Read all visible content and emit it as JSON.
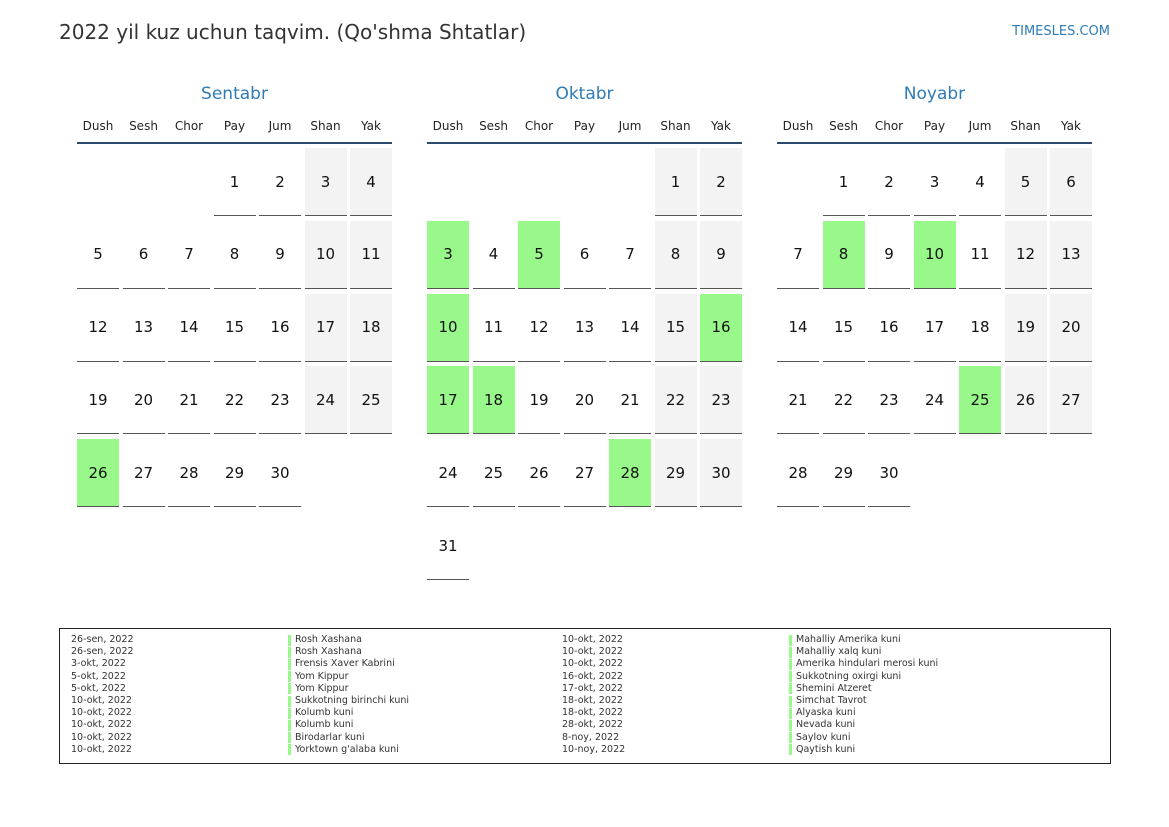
{
  "header": {
    "title": "2022 yil kuz uchun taqvim. (Qo'shma Shtatlar)",
    "site": "TIMESLES.COM"
  },
  "weekdays": [
    "Dush",
    "Sesh",
    "Chor",
    "Pay",
    "Jum",
    "Shan",
    "Yak"
  ],
  "weekend_columns": [
    5,
    6
  ],
  "months": [
    {
      "name": "Sentabr",
      "highlight": [
        26
      ],
      "weeks": [
        [
          null,
          null,
          null,
          1,
          2,
          3,
          4
        ],
        [
          5,
          6,
          7,
          8,
          9,
          10,
          11
        ],
        [
          12,
          13,
          14,
          15,
          16,
          17,
          18
        ],
        [
          19,
          20,
          21,
          22,
          23,
          24,
          25
        ],
        [
          26,
          27,
          28,
          29,
          30,
          null,
          null
        ]
      ]
    },
    {
      "name": "Oktabr",
      "highlight": [
        3,
        5,
        10,
        16,
        17,
        18,
        28
      ],
      "weeks": [
        [
          null,
          null,
          null,
          null,
          null,
          1,
          2
        ],
        [
          3,
          4,
          5,
          6,
          7,
          8,
          9
        ],
        [
          10,
          11,
          12,
          13,
          14,
          15,
          16
        ],
        [
          17,
          18,
          19,
          20,
          21,
          22,
          23
        ],
        [
          24,
          25,
          26,
          27,
          28,
          29,
          30
        ],
        [
          31,
          null,
          null,
          null,
          null,
          null,
          null
        ]
      ]
    },
    {
      "name": "Noyabr",
      "highlight": [
        8,
        10,
        25
      ],
      "weeks": [
        [
          null,
          1,
          2,
          3,
          4,
          5,
          6
        ],
        [
          7,
          8,
          9,
          10,
          11,
          12,
          13
        ],
        [
          14,
          15,
          16,
          17,
          18,
          19,
          20
        ],
        [
          21,
          22,
          23,
          24,
          25,
          26,
          27
        ],
        [
          28,
          29,
          30,
          null,
          null,
          null,
          null
        ]
      ]
    }
  ],
  "holidays": [
    {
      "date": "26-sen, 2022",
      "name": "Rosh Xashana"
    },
    {
      "date": "26-sen, 2022",
      "name": "Rosh Xashana"
    },
    {
      "date": "3-okt, 2022",
      "name": "Frensis Xaver Kabrini"
    },
    {
      "date": "5-okt, 2022",
      "name": "Yom Kippur"
    },
    {
      "date": "5-okt, 2022",
      "name": "Yom Kippur"
    },
    {
      "date": "10-okt, 2022",
      "name": "Sukkotning birinchi kuni"
    },
    {
      "date": "10-okt, 2022",
      "name": "Kolumb kuni"
    },
    {
      "date": "10-okt, 2022",
      "name": "Kolumb kuni"
    },
    {
      "date": "10-okt, 2022",
      "name": "Birodarlar kuni"
    },
    {
      "date": "10-okt, 2022",
      "name": "Yorktown g'alaba kuni"
    },
    {
      "date": "10-okt, 2022",
      "name": "Mahalliy Amerika kuni"
    },
    {
      "date": "10-okt, 2022",
      "name": "Mahalliy xalq kuni"
    },
    {
      "date": "10-okt, 2022",
      "name": "Amerika hindulari merosi kuni"
    },
    {
      "date": "16-okt, 2022",
      "name": "Sukkotning oxirgi kuni"
    },
    {
      "date": "17-okt, 2022",
      "name": "Shemini Atzeret"
    },
    {
      "date": "18-okt, 2022",
      "name": "Simchat Tavrot"
    },
    {
      "date": "18-okt, 2022",
      "name": "Alyaska kuni"
    },
    {
      "date": "28-okt, 2022",
      "name": "Nevada kuni"
    },
    {
      "date": "8-noy, 2022",
      "name": "Saylov kuni"
    },
    {
      "date": "10-noy, 2022",
      "name": "Qaytish kuni"
    }
  ]
}
